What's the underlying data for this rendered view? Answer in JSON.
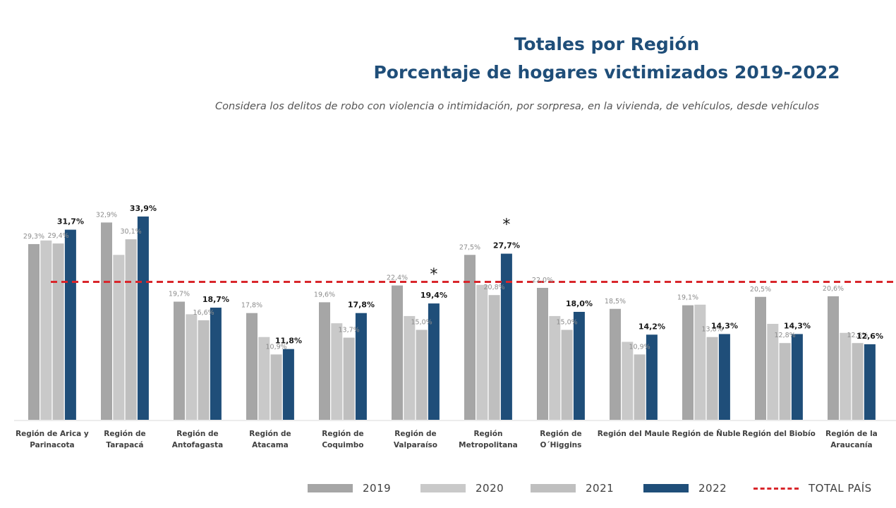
{
  "title_line1": "Totales por Región",
  "title_line2": "Porcentaje de hogares victimizados 2019-2022",
  "subtitle": "Considera los delitos de robo con violencia o intimidación, por sorpresa, en la vivienda, de vehículos, desde vehículos",
  "colors": {
    "2019": "#a6a6a6",
    "2020": "#c9c9c9",
    "2021": "#bfbfbf",
    "2022": "#1f4e79",
    "total_pais": "#d9262b",
    "title": "#1f4e79"
  },
  "legend": [
    {
      "key": "2019",
      "label": "2019"
    },
    {
      "key": "2020",
      "label": "2020"
    },
    {
      "key": "2021",
      "label": "2021"
    },
    {
      "key": "2022",
      "label": "2022"
    },
    {
      "key": "total_pais",
      "label": "TOTAL PAÍS"
    }
  ],
  "chart_data": {
    "type": "bar",
    "categories": [
      [
        "Región de Arica y",
        "Parinacota"
      ],
      [
        "Región de",
        "Tarapacá"
      ],
      [
        "Región de",
        "Antofagasta"
      ],
      [
        "Región de",
        "Atacama"
      ],
      [
        "Región de",
        "Coquimbo"
      ],
      [
        "Región de",
        "Valparaíso"
      ],
      [
        "Región",
        "Metropolitana"
      ],
      [
        "Región de",
        "O´Higgins"
      ],
      [
        "Región del Maule"
      ],
      [
        "Región de Ñuble"
      ],
      [
        "Región del Biobío"
      ],
      [
        "Región de la",
        "Araucanía"
      ]
    ],
    "series": [
      {
        "name": "2019",
        "values": [
          29.3,
          32.9,
          19.7,
          17.8,
          19.6,
          22.4,
          27.5,
          22.0,
          18.5,
          19.1,
          20.5,
          20.6
        ],
        "labels": [
          "29,3%",
          "32,9%",
          "19,7%",
          "17,8%",
          "19,6%",
          "22,4%",
          "27,5%",
          "22,0%",
          "18,5%",
          "19,1%",
          "20,5%",
          "20,6%"
        ]
      },
      {
        "name": "2020",
        "values": [
          29.9,
          27.5,
          17.6,
          13.8,
          16.1,
          17.3,
          22.5,
          17.3,
          13.0,
          19.2,
          16.0,
          14.5
        ],
        "labels": null
      },
      {
        "name": "2021",
        "values": [
          29.4,
          30.1,
          16.6,
          10.9,
          13.7,
          15.0,
          20.8,
          15.0,
          10.9,
          13.8,
          12.8,
          12.8
        ],
        "labels": [
          "29,4%",
          "30,1%",
          "16,6%",
          "10,9%",
          "13,7%",
          "15,0%",
          "20,8%",
          "15,0%",
          "10,9%",
          "13,8%",
          "12,8%",
          "12,8%"
        ]
      },
      {
        "name": "2022",
        "values": [
          31.7,
          33.9,
          18.7,
          11.8,
          17.8,
          19.4,
          27.7,
          18.0,
          14.2,
          14.3,
          14.3,
          12.6
        ],
        "labels": [
          "31,7%",
          "33,9%",
          "18,7%",
          "11,8%",
          "17,8%",
          "19,4%",
          "27,7%",
          "18,0%",
          "14,2%",
          "14,3%",
          "14,3%",
          "12,6%"
        ]
      }
    ],
    "total_pais": 23.0,
    "significance_marker": "*",
    "significant_categories": [
      5,
      6
    ],
    "ylim": [
      0,
      37
    ],
    "xlabel": "",
    "ylabel": ""
  }
}
